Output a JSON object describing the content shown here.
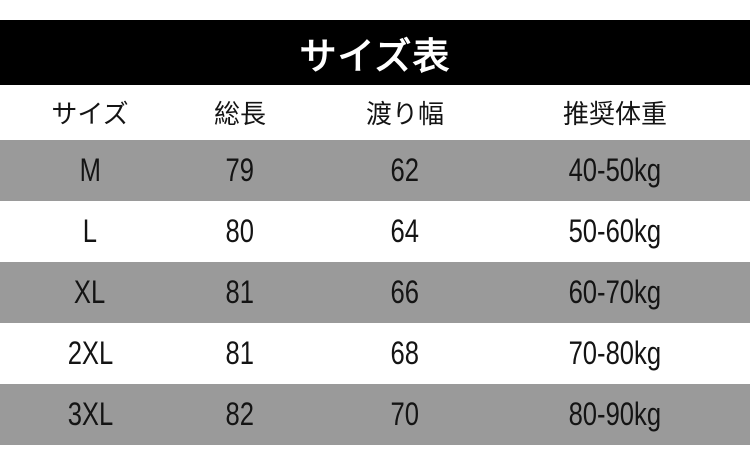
{
  "title": "サイズ表",
  "table": {
    "columns": [
      "サイズ",
      "総長",
      "渡り幅",
      "推奨体重"
    ],
    "rows": [
      {
        "size": "M",
        "total_length": "79",
        "width_across": "62",
        "weight": "40-50kg"
      },
      {
        "size": "L",
        "total_length": "80",
        "width_across": "64",
        "weight": "50-60kg"
      },
      {
        "size": "XL",
        "total_length": "81",
        "width_across": "66",
        "weight": "60-70kg"
      },
      {
        "size": "2XL",
        "total_length": "81",
        "width_across": "68",
        "weight": "70-80kg"
      },
      {
        "size": "3XL",
        "total_length": "82",
        "width_across": "70",
        "weight": "80-90kg"
      }
    ]
  },
  "chart_data": {
    "type": "table",
    "title": "サイズ表",
    "columns": [
      "サイズ",
      "総長",
      "渡り幅",
      "推奨体重"
    ],
    "rows": [
      [
        "M",
        79,
        62,
        "40-50kg"
      ],
      [
        "L",
        80,
        64,
        "50-60kg"
      ],
      [
        "XL",
        81,
        66,
        "60-70kg"
      ],
      [
        "2XL",
        81,
        68,
        "70-80kg"
      ],
      [
        "3XL",
        82,
        70,
        "80-90kg"
      ]
    ],
    "layout_hints": {
      "title_bar": "black banner, white serif text, centered",
      "row_striping": "odd data rows gray, even white, header row white",
      "grid": "off"
    }
  },
  "colors": {
    "title_bar_bg": "#000000",
    "title_text": "#ffffff",
    "row_alt_bg": "#9a9a9a",
    "row_bg": "#ffffff",
    "cell_text": "#141414",
    "page_bg": "#ffffff"
  }
}
